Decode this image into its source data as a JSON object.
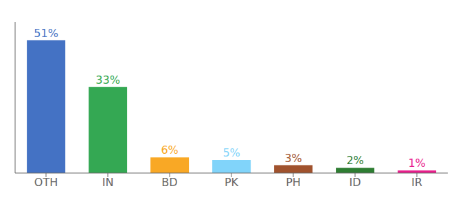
{
  "chart_data": {
    "type": "bar",
    "categories": [
      "OTH",
      "IN",
      "BD",
      "PK",
      "PH",
      "ID",
      "IR"
    ],
    "values": [
      51,
      33,
      6,
      5,
      3,
      2,
      1
    ],
    "value_labels": [
      "51%",
      "33%",
      "6%",
      "5%",
      "3%",
      "2%",
      "1%"
    ],
    "colors": [
      "#4472C4",
      "#34A853",
      "#F9A825",
      "#81D4FA",
      "#A0522D",
      "#2E7D32",
      "#E91E8C"
    ],
    "ylim": [
      0,
      58
    ],
    "grid": false,
    "data_labels": true,
    "tick_labels": "x"
  }
}
